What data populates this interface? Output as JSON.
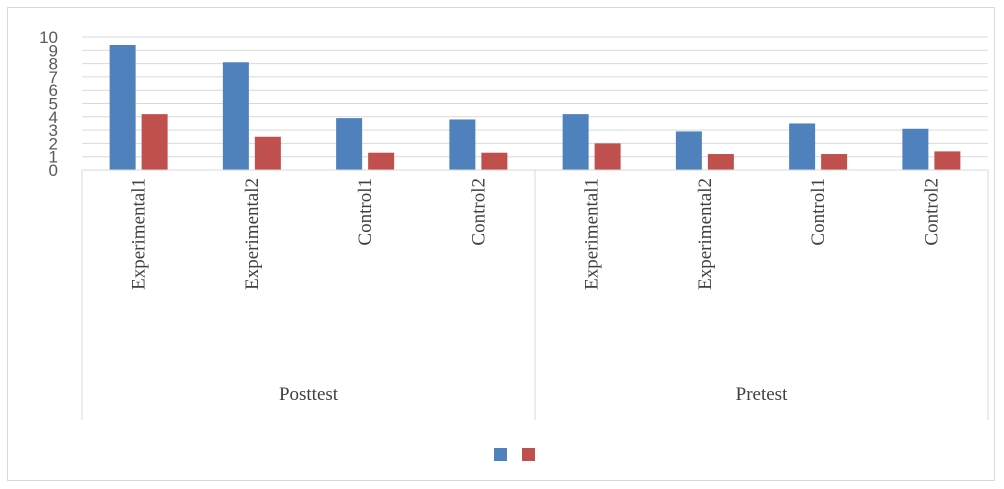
{
  "chart_data": {
    "type": "bar",
    "title": "",
    "xlabel": "",
    "ylabel": "",
    "ylim": [
      0,
      10
    ],
    "yticks": [
      0,
      1,
      2,
      3,
      4,
      5,
      6,
      7,
      8,
      9,
      10
    ],
    "grid": true,
    "legend_position": "bottom",
    "groups": [
      {
        "label": "Posttest",
        "categories": [
          "Experimental1",
          "Experimental2",
          "Control1",
          "Control2"
        ]
      },
      {
        "label": "Pretest",
        "categories": [
          "Experimental1",
          "Experimental2",
          "Control1",
          "Control2"
        ]
      }
    ],
    "series": [
      {
        "color": "#4f81bd",
        "values": [
          9.4,
          8.1,
          3.9,
          3.8,
          4.2,
          2.9,
          3.5,
          3.1
        ]
      },
      {
        "color": "#c0504d",
        "values": [
          4.2,
          2.5,
          1.3,
          1.3,
          2.0,
          1.2,
          1.2,
          1.4
        ]
      }
    ]
  }
}
